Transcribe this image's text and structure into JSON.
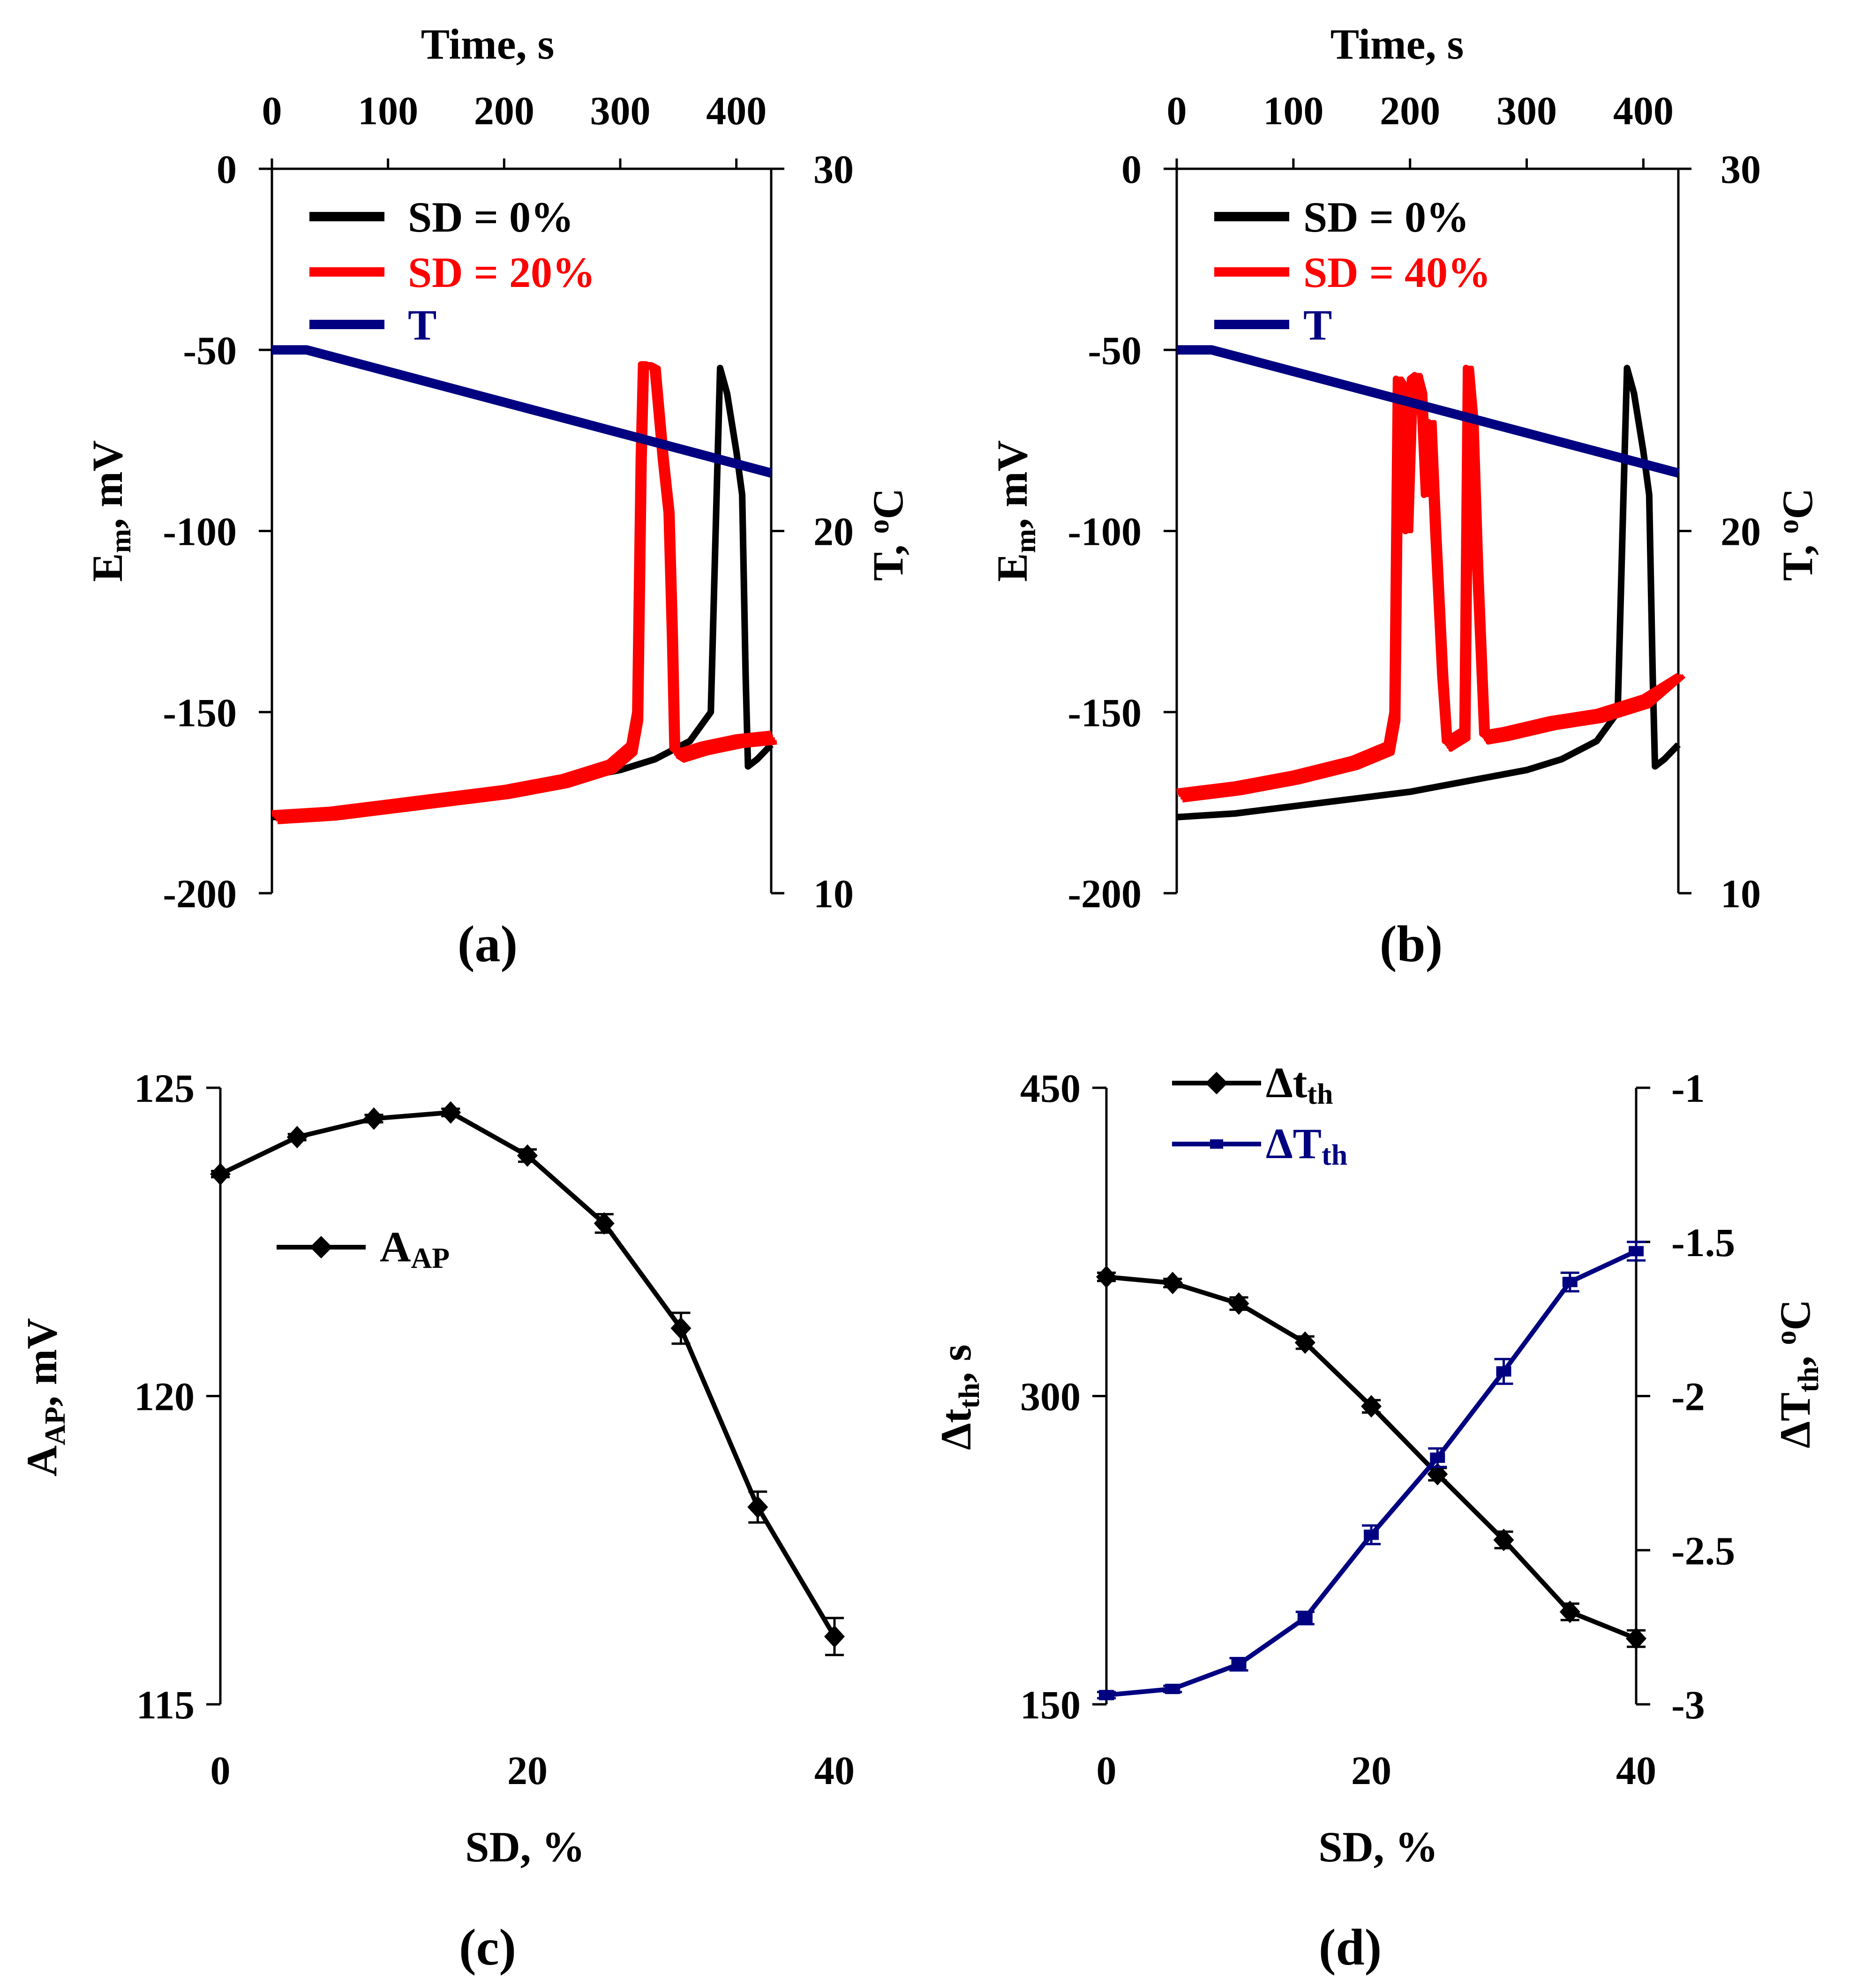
{
  "colors": {
    "black": "#000000",
    "red": "#ff0000",
    "navy": "#000080"
  },
  "panels": {
    "a": {
      "label": "(a)",
      "top_axis_label": "Time, s",
      "left_axis_label": "E",
      "left_axis_sub": "m",
      "left_axis_unit": ", mV",
      "right_axis_label": "T, ",
      "right_axis_sup": "o",
      "right_axis_unit": "C",
      "legend": [
        "SD = 0%",
        "SD = 20%",
        "T"
      ]
    },
    "b": {
      "label": "(b)",
      "top_axis_label": "Time, s",
      "left_axis_label": "E",
      "left_axis_sub": "m",
      "left_axis_unit": ", mV",
      "right_axis_label": "T, ",
      "right_axis_sup": "o",
      "right_axis_unit": "C",
      "legend": [
        "SD = 0%",
        "SD = 40%",
        "T"
      ]
    },
    "c": {
      "label": "(c)",
      "x_axis_label": "SD, %",
      "y_axis_label": "A",
      "y_axis_sub": "AP",
      "y_axis_unit": ", mV",
      "legend_label": "A",
      "legend_sub": "AP"
    },
    "d": {
      "label": "(d)",
      "x_axis_label": "SD, %",
      "left_axis_label": "Δt",
      "left_axis_sub": "th",
      "left_axis_unit": ", s",
      "right_axis_label": "ΔT",
      "right_axis_sub": "th",
      "right_axis_unit": ", ",
      "right_axis_sup": "o",
      "right_axis_unit2": "C",
      "legend_1": "Δt",
      "legend_1_sub": "th",
      "legend_2": "ΔT",
      "legend_2_sub": "th"
    }
  },
  "chart_data": [
    {
      "panel": "a",
      "type": "line",
      "x_top": {
        "label": "Time, s",
        "range": [
          0,
          430
        ],
        "ticks": [
          0,
          100,
          200,
          300,
          400
        ]
      },
      "y_left": {
        "range": [
          -200,
          0
        ],
        "ticks": [
          0,
          -50,
          -100,
          -150,
          -200
        ]
      },
      "y_right": {
        "range": [
          10,
          30
        ],
        "ticks": [
          30,
          20,
          10
        ]
      },
      "legend_position": "top-left",
      "series": [
        {
          "name": "SD = 0%",
          "axis": "left",
          "color": "#000000",
          "points": [
            [
              0,
              -179
            ],
            [
              50,
              -178
            ],
            [
              100,
              -176
            ],
            [
              150,
              -174
            ],
            [
              200,
              -172
            ],
            [
              250,
              -169
            ],
            [
              300,
              -166
            ],
            [
              330,
              -163
            ],
            [
              360,
              -158
            ],
            [
              378,
              -150
            ],
            [
              383,
              -90
            ],
            [
              386,
              -55
            ],
            [
              392,
              -62
            ],
            [
              400,
              -78
            ],
            [
              405,
              -90
            ],
            [
              408,
              -140
            ],
            [
              410,
              -165
            ],
            [
              418,
              -163
            ],
            [
              430,
              -159
            ]
          ]
        },
        {
          "name": "SD = 20%",
          "axis": "left",
          "color": "#ff0000",
          "bursts": true,
          "points": [
            [
              0,
              -178
            ],
            [
              50,
              -177
            ],
            [
              100,
              -175
            ],
            [
              150,
              -173
            ],
            [
              200,
              -171
            ],
            [
              250,
              -168
            ],
            [
              290,
              -164
            ],
            [
              308,
              -159
            ],
            [
              313,
              -150
            ],
            [
              316,
              -80
            ],
            [
              318,
              -54
            ],
            [
              322,
              -54
            ],
            [
              328,
              -55
            ],
            [
              335,
              -80
            ],
            [
              340,
              -95
            ],
            [
              343,
              -130
            ],
            [
              345,
              -160
            ],
            [
              350,
              -161
            ],
            [
              370,
              -159
            ],
            [
              400,
              -157
            ],
            [
              430,
              -156
            ]
          ]
        },
        {
          "name": "T",
          "axis": "right",
          "color": "#000080",
          "points": [
            [
              0,
              25
            ],
            [
              30,
              25
            ],
            [
              430,
              21.6
            ]
          ]
        }
      ]
    },
    {
      "panel": "b",
      "type": "line",
      "x_top": {
        "label": "Time, s",
        "range": [
          0,
          430
        ],
        "ticks": [
          0,
          100,
          200,
          300,
          400
        ]
      },
      "y_left": {
        "range": [
          -200,
          0
        ],
        "ticks": [
          0,
          -50,
          -100,
          -150,
          -200
        ]
      },
      "y_right": {
        "range": [
          10,
          30
        ],
        "ticks": [
          30,
          20,
          10
        ]
      },
      "legend_position": "top-left",
      "series": [
        {
          "name": "SD = 0%",
          "axis": "left",
          "color": "#000000",
          "points": [
            [
              0,
              -179
            ],
            [
              50,
              -178
            ],
            [
              100,
              -176
            ],
            [
              150,
              -174
            ],
            [
              200,
              -172
            ],
            [
              250,
              -169
            ],
            [
              300,
              -166
            ],
            [
              330,
              -163
            ],
            [
              360,
              -158
            ],
            [
              378,
              -150
            ],
            [
              383,
              -90
            ],
            [
              386,
              -55
            ],
            [
              392,
              -62
            ],
            [
              400,
              -78
            ],
            [
              405,
              -90
            ],
            [
              408,
              -140
            ],
            [
              410,
              -165
            ],
            [
              418,
              -163
            ],
            [
              430,
              -159
            ]
          ]
        },
        {
          "name": "SD = 40%",
          "axis": "left",
          "color": "#ff0000",
          "bursts": true,
          "points": [
            [
              0,
              -172
            ],
            [
              50,
              -170
            ],
            [
              100,
              -167
            ],
            [
              150,
              -163
            ],
            [
              180,
              -159
            ],
            [
              185,
              -150
            ],
            [
              188,
              -58
            ],
            [
              192,
              -60
            ],
            [
              196,
              -100
            ],
            [
              200,
              -58
            ],
            [
              204,
              -57
            ],
            [
              208,
              -62
            ],
            [
              212,
              -90
            ],
            [
              216,
              -70
            ],
            [
              220,
              -100
            ],
            [
              226,
              -140
            ],
            [
              230,
              -158
            ],
            [
              240,
              -156
            ],
            [
              245,
              -155
            ],
            [
              248,
              -55
            ],
            [
              252,
              -70
            ],
            [
              256,
              -110
            ],
            [
              262,
              -156
            ],
            [
              280,
              -155
            ],
            [
              320,
              -152
            ],
            [
              360,
              -150
            ],
            [
              400,
              -146
            ],
            [
              430,
              -140
            ]
          ]
        },
        {
          "name": "T",
          "axis": "right",
          "color": "#000080",
          "points": [
            [
              0,
              25
            ],
            [
              30,
              25
            ],
            [
              430,
              21.6
            ]
          ]
        }
      ]
    },
    {
      "panel": "c",
      "type": "line",
      "x": {
        "label": "SD, %",
        "range": [
          0,
          40
        ],
        "ticks": [
          0,
          20,
          40
        ]
      },
      "y": {
        "label": "AAP, mV",
        "range": [
          115,
          125
        ],
        "ticks": [
          115,
          120,
          125
        ]
      },
      "legend_position": "upper-left",
      "series": [
        {
          "name": "AAP",
          "color": "#000000",
          "marker": "diamond",
          "x": [
            0,
            5,
            10,
            15,
            20,
            25,
            30,
            35,
            40
          ],
          "y": [
            123.6,
            124.2,
            124.5,
            124.6,
            123.9,
            122.8,
            121.1,
            118.2,
            116.1
          ],
          "err": [
            0.05,
            0.05,
            0.06,
            0.06,
            0.1,
            0.15,
            0.25,
            0.25,
            0.3
          ]
        }
      ]
    },
    {
      "panel": "d",
      "type": "line",
      "x": {
        "label": "SD, %",
        "range": [
          0,
          40
        ],
        "ticks": [
          0,
          20,
          40
        ]
      },
      "y_left": {
        "label": "Δtth, s",
        "range": [
          150,
          450
        ],
        "ticks": [
          150,
          300,
          450
        ]
      },
      "y_right": {
        "label": "ΔTth, oC",
        "range": [
          -3,
          -1
        ],
        "ticks": [
          -1,
          -1.5,
          -2,
          -2.5,
          -3
        ]
      },
      "legend_position": "top-left",
      "series": [
        {
          "name": "Δtth",
          "axis": "left",
          "color": "#000000",
          "marker": "diamond",
          "x": [
            0,
            5,
            10,
            15,
            20,
            25,
            30,
            35,
            40
          ],
          "y": [
            358,
            355,
            345,
            326,
            295,
            262,
            230,
            195,
            182
          ],
          "err": [
            2,
            2,
            3,
            3,
            3,
            3,
            4,
            4,
            4
          ]
        },
        {
          "name": "ΔTth",
          "axis": "right",
          "color": "#000080",
          "marker": "square",
          "x": [
            0,
            5,
            10,
            15,
            20,
            25,
            30,
            35,
            40
          ],
          "y": [
            -2.97,
            -2.95,
            -2.87,
            -2.72,
            -2.45,
            -2.2,
            -1.92,
            -1.63,
            -1.53
          ],
          "err": [
            0.01,
            0.01,
            0.02,
            0.02,
            0.03,
            0.03,
            0.04,
            0.03,
            0.03
          ]
        }
      ]
    }
  ]
}
